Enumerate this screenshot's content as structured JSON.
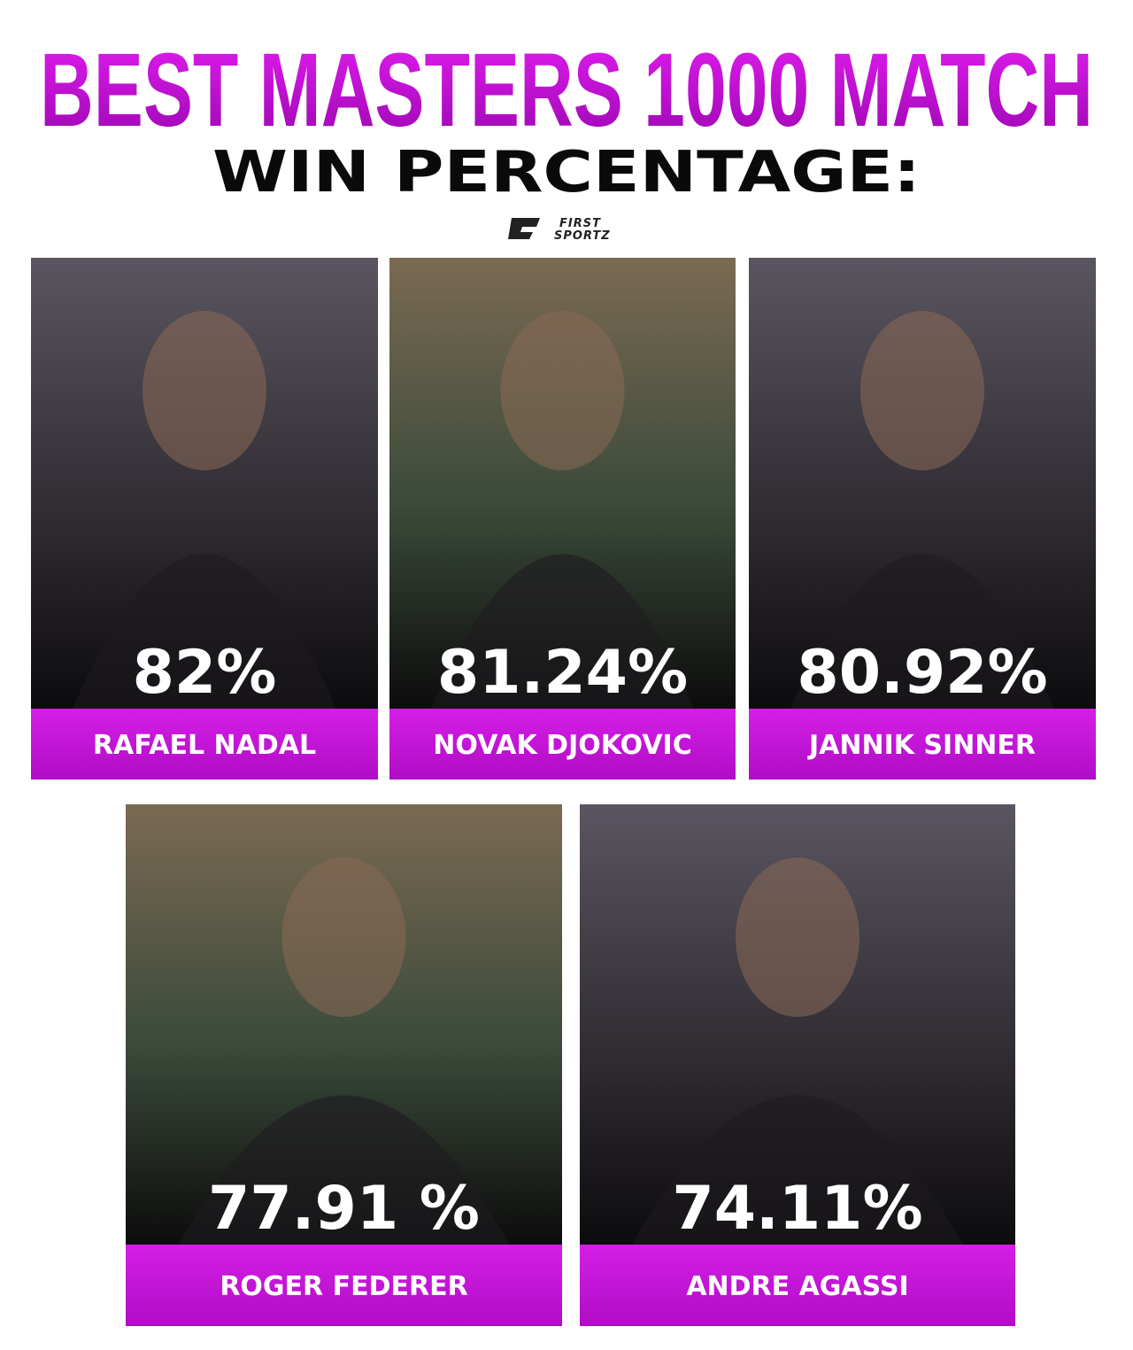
{
  "header": {
    "title": "BEST MASTERS 1000 MATCH",
    "subtitle": "WIN PERCENTAGE:",
    "logo_top": "FIRST",
    "logo_bottom": "SPORTZ"
  },
  "cards": [
    {
      "percentage": "82%",
      "name": "RAFAEL NADAL"
    },
    {
      "percentage": "81.24%",
      "name": "NOVAK DJOKOVIC"
    },
    {
      "percentage": "80.92%",
      "name": "JANNIK SINNER"
    },
    {
      "percentage": "77.91 %",
      "name": "ROGER FEDERER"
    },
    {
      "percentage": "74.11%",
      "name": "ANDRE AGASSI"
    }
  ]
}
